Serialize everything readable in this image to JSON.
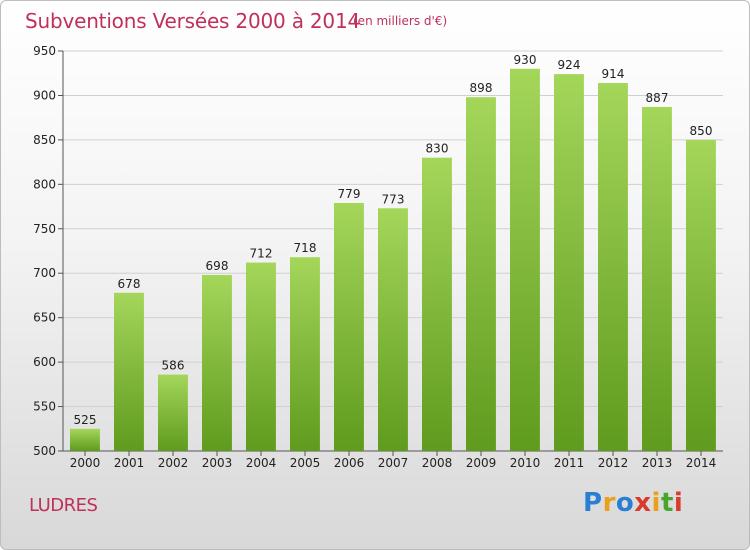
{
  "header": {
    "title": "Subventions Versées 2000 à 2014",
    "subtitle": "(en milliers d'€)"
  },
  "footer": {
    "city": "LUDRES",
    "logo_letters": [
      "P",
      "r",
      "o",
      "x",
      "i",
      "t",
      "i"
    ],
    "logo_colors": [
      "#2a7fd4",
      "#e8a11a",
      "#2a7fd4",
      "#d93a2c",
      "#e8a11a",
      "#4aa52e",
      "#d93a2c"
    ]
  },
  "colors": {
    "bar_top": "#a4d65a",
    "bar_bottom": "#5f9b1e",
    "grid": "#d0d0d0",
    "accent": "#c0305a"
  },
  "chart_data": {
    "type": "bar",
    "title": "Subventions Versées 2000 à 2014",
    "subtitle": "(en milliers d'€)",
    "xlabel": "",
    "ylabel": "",
    "categories": [
      "2000",
      "2001",
      "2002",
      "2003",
      "2004",
      "2005",
      "2006",
      "2007",
      "2008",
      "2009",
      "2010",
      "2011",
      "2012",
      "2013",
      "2014"
    ],
    "values": [
      525,
      678,
      586,
      698,
      712,
      718,
      779,
      773,
      830,
      898,
      930,
      924,
      914,
      887,
      850
    ],
    "ylim": [
      500,
      950
    ],
    "yticks": [
      500,
      550,
      600,
      650,
      700,
      750,
      800,
      850,
      900,
      950
    ],
    "grid": true,
    "legend": "none",
    "data_labels": true
  }
}
